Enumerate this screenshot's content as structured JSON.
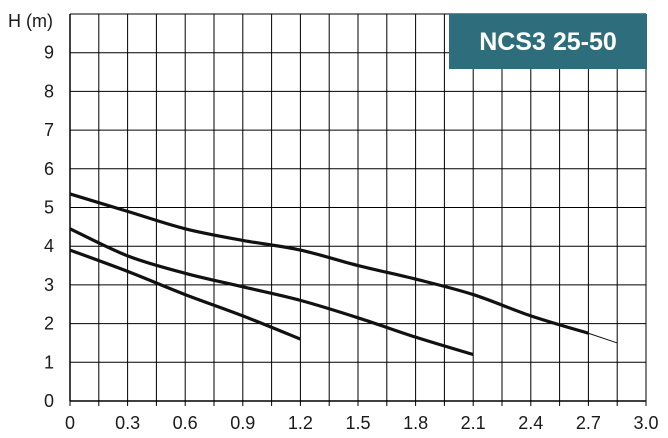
{
  "chart_data": {
    "type": "line",
    "title": "NCS3 25-50",
    "ylabel": "H (m)",
    "xlabel": "",
    "xlim": [
      0,
      3.0
    ],
    "ylim": [
      0,
      10
    ],
    "x_ticks": [
      "0",
      "0.3",
      "0.6",
      "0.9",
      "1.2",
      "1.5",
      "1.8",
      "2.1",
      "2.4",
      "2.7",
      "3.0"
    ],
    "y_ticks": [
      "0",
      "1",
      "2",
      "3",
      "4",
      "5",
      "6",
      "7",
      "8",
      "9"
    ],
    "grid": true,
    "legend": "none",
    "series": [
      {
        "x": [
          0,
          0.3,
          0.6,
          0.9,
          1.2,
          1.5,
          1.8,
          2.1,
          2.4,
          2.7
        ],
        "y": [
          5.35,
          4.9,
          4.45,
          4.15,
          3.9,
          3.5,
          3.15,
          2.75,
          2.2,
          1.75
        ]
      },
      {
        "x": [
          2.7,
          2.85
        ],
        "y": [
          1.75,
          1.5
        ],
        "thin": true
      },
      {
        "x": [
          0,
          0.3,
          0.6,
          0.9,
          1.2,
          1.5,
          1.8,
          2.1
        ],
        "y": [
          4.45,
          3.75,
          3.3,
          2.95,
          2.6,
          2.15,
          1.65,
          1.2
        ]
      },
      {
        "x": [
          0,
          0.3,
          0.6,
          0.9,
          1.2
        ],
        "y": [
          3.9,
          3.35,
          2.75,
          2.2,
          1.6
        ]
      }
    ],
    "colors": {
      "title_bg": "#2e6e7c",
      "curve": "#111111",
      "grid": "#000000"
    }
  }
}
